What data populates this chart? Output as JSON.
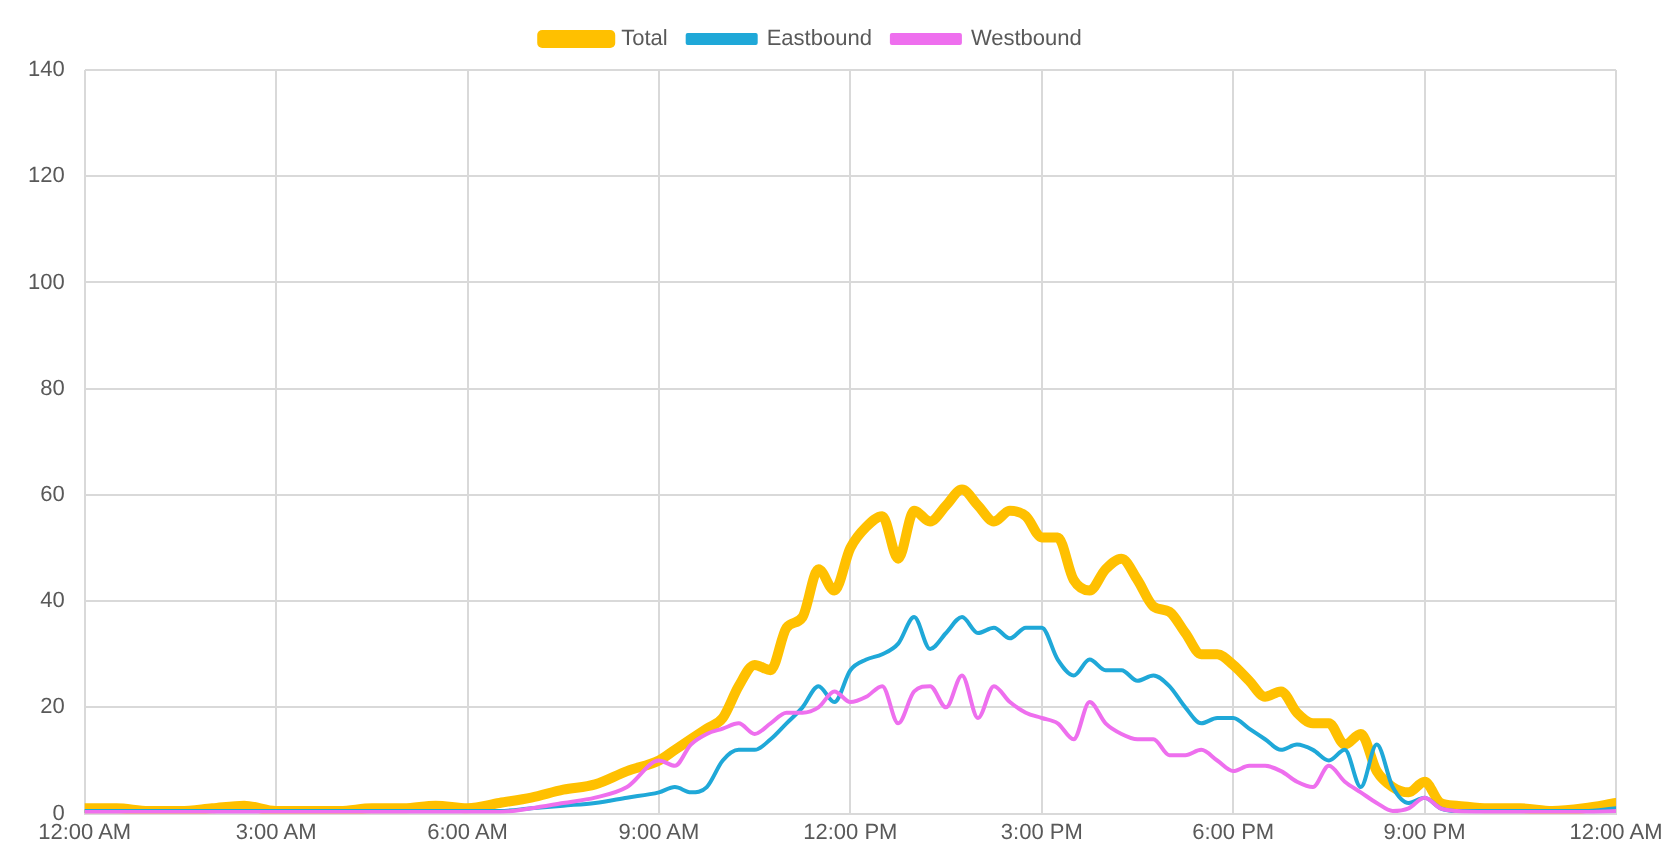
{
  "chart_data": {
    "type": "line",
    "legend": "top",
    "grid": true,
    "marker": "none",
    "line_style": "solid",
    "x": [
      0,
      0.5,
      1,
      1.5,
      2,
      2.5,
      3,
      3.5,
      4,
      4.5,
      5,
      5.5,
      6,
      6.5,
      7,
      7.5,
      8,
      8.5,
      9,
      9.25,
      9.5,
      9.75,
      10,
      10.25,
      10.5,
      10.75,
      11,
      11.25,
      11.5,
      11.75,
      12,
      12.25,
      12.5,
      12.75,
      13,
      13.25,
      13.5,
      13.75,
      14,
      14.25,
      14.5,
      14.75,
      15,
      15.25,
      15.5,
      15.75,
      16,
      16.25,
      16.5,
      16.75,
      17,
      17.25,
      17.5,
      17.75,
      18,
      18.25,
      18.5,
      18.75,
      19,
      19.25,
      19.5,
      19.75,
      20,
      20.25,
      20.5,
      20.75,
      21,
      21.25,
      21.5,
      22,
      22.5,
      23,
      23.5,
      24
    ],
    "xlim": [
      0,
      24
    ],
    "xticks": [
      {
        "value": 0,
        "label": "12:00 AM"
      },
      {
        "value": 3,
        "label": "3:00 AM"
      },
      {
        "value": 6,
        "label": "6:00 AM"
      },
      {
        "value": 9,
        "label": "9:00 AM"
      },
      {
        "value": 12,
        "label": "12:00 PM"
      },
      {
        "value": 15,
        "label": "3:00 PM"
      },
      {
        "value": 18,
        "label": "6:00 PM"
      },
      {
        "value": 21,
        "label": "9:00 PM"
      },
      {
        "value": 24,
        "label": "12:00 AM"
      }
    ],
    "ylim": [
      0,
      140
    ],
    "yticks": [
      0,
      20,
      40,
      60,
      80,
      100,
      120,
      140
    ],
    "series": [
      {
        "name": "Total",
        "color": "#ffc000",
        "values": [
          1,
          1,
          0.5,
          0.5,
          1,
          1.5,
          0.5,
          0.5,
          0.5,
          1,
          1,
          1.5,
          1,
          2,
          3,
          4.5,
          5.5,
          8,
          10,
          12,
          14,
          16,
          18,
          24,
          28,
          27,
          35,
          37,
          46,
          42,
          50,
          54,
          56,
          48,
          57,
          55,
          58,
          61,
          58,
          55,
          57,
          56,
          52,
          52,
          44,
          42,
          46,
          48,
          44,
          39,
          38,
          34,
          30,
          30,
          28,
          25,
          22,
          23,
          19,
          17,
          17,
          13,
          15,
          8,
          5,
          4,
          6,
          2,
          1.5,
          1,
          1,
          0.5,
          1,
          2
        ]
      },
      {
        "name": "Eastbound",
        "color": "#1fa8d8",
        "values": [
          0.5,
          0.5,
          0.5,
          0.5,
          0.5,
          0.5,
          0.5,
          0.5,
          0.5,
          0.5,
          0.5,
          0.5,
          0.5,
          0.5,
          1,
          1.5,
          2,
          3,
          4,
          5,
          4,
          5,
          10,
          12,
          12,
          14,
          17,
          20,
          24,
          21,
          27,
          29,
          30,
          32,
          37,
          31,
          34,
          37,
          34,
          35,
          33,
          35,
          35,
          29,
          26,
          29,
          27,
          27,
          25,
          26,
          24,
          20,
          17,
          18,
          18,
          16,
          14,
          12,
          13,
          12,
          10,
          12,
          5,
          13,
          5,
          2,
          3,
          1,
          0.5,
          0.5,
          0.5,
          0.5,
          0.5,
          1
        ]
      },
      {
        "name": "Westbound",
        "color": "#ee6fee",
        "values": [
          0.3,
          0.3,
          0.3,
          0.3,
          0.3,
          0.3,
          0.3,
          0.3,
          0.3,
          0.3,
          0.3,
          0.3,
          0.3,
          0.3,
          1,
          2,
          3,
          5,
          10,
          9,
          13,
          15,
          16,
          17,
          15,
          17,
          19,
          19,
          20,
          23,
          21,
          22,
          24,
          17,
          23,
          24,
          20,
          26,
          18,
          24,
          21,
          19,
          18,
          17,
          14,
          21,
          17,
          15,
          14,
          14,
          11,
          11,
          12,
          10,
          8,
          9,
          9,
          8,
          6,
          5,
          9,
          6,
          4,
          2,
          0.5,
          1,
          3,
          1,
          0.5,
          0.3,
          0.3,
          0.3,
          0.3,
          0.5
        ]
      }
    ]
  }
}
